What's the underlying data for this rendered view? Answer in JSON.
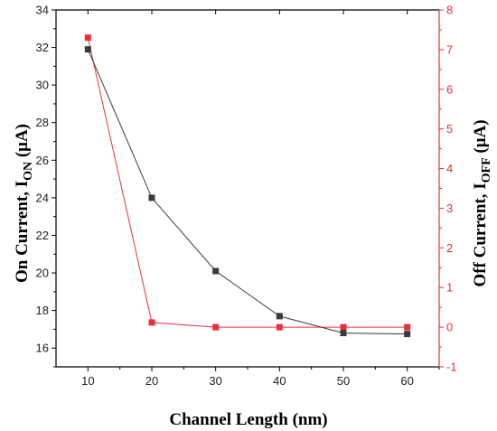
{
  "chart_data": {
    "type": "line",
    "xlabel": "Channel Length (nm)",
    "ylabel": {
      "main": "On Current, I",
      "sub": "ON",
      "unit": " (μA)"
    },
    "y2label": {
      "main": "Off Current, I",
      "sub": "OFF",
      "unit": " (μA)"
    },
    "x": [
      10,
      20,
      30,
      40,
      50,
      60
    ],
    "xlim": [
      5,
      65
    ],
    "ylim": [
      15,
      34
    ],
    "y2lim": [
      -1,
      8
    ],
    "xticks": [
      "10",
      "20",
      "30",
      "40",
      "50",
      "60"
    ],
    "yticks": [
      "16",
      "18",
      "20",
      "22",
      "24",
      "26",
      "28",
      "30",
      "32",
      "34"
    ],
    "y2ticks": [
      "-1",
      "0",
      "1",
      "2",
      "3",
      "4",
      "5",
      "6",
      "7",
      "8"
    ],
    "series": [
      {
        "axis": "left",
        "color": "#3a3a3a",
        "values": [
          31.9,
          24.0,
          20.1,
          17.7,
          16.8,
          16.75
        ]
      },
      {
        "axis": "right",
        "color": "#e8303a",
        "values": [
          7.3,
          0.12,
          0.0,
          0.0,
          0.0,
          0.0
        ]
      }
    ],
    "grid": false,
    "legend": "none",
    "colors": {
      "left_axis": "#000000",
      "right_axis": "#e8303a"
    }
  }
}
